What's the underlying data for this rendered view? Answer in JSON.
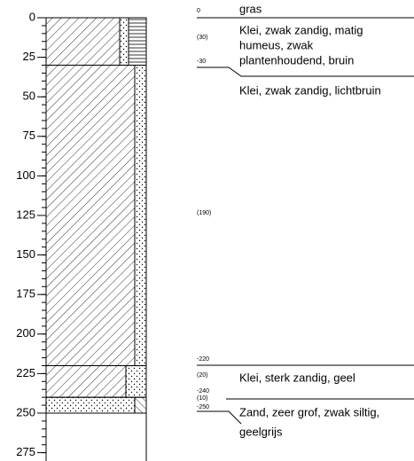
{
  "axis": {
    "ticks": [
      0,
      25,
      50,
      75,
      100,
      125,
      150,
      175,
      200,
      225,
      250,
      275
    ]
  },
  "surface": "gras",
  "depth_labels": [
    0,
    -30,
    -220,
    -240,
    -250
  ],
  "layers": [
    {
      "thickness": "(30)",
      "description": [
        "Klei, zwak zandig, matig",
        "humeus, zwak",
        "plantenhoudend, bruin"
      ]
    },
    {
      "thickness": "(190)",
      "description": [
        "Klei, zwak zandig, lichtbruin"
      ]
    },
    {
      "thickness": "(20)",
      "description": [
        "Klei, sterk zandig, geel"
      ]
    },
    {
      "thickness": "(10)",
      "description": [
        "Zand, zeer grof, zwak siltig,",
        "geelgrijs"
      ]
    }
  ]
}
